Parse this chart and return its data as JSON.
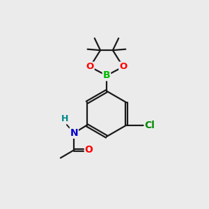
{
  "background_color": "#ebebeb",
  "bond_color": "#1a1a1a",
  "atom_colors": {
    "O": "#ff0000",
    "N": "#0000cc",
    "B": "#00bb00",
    "Cl": "#008800",
    "H": "#008888",
    "C": "#1a1a1a"
  },
  "line_width": 1.6,
  "figsize": [
    3.0,
    3.0
  ],
  "dpi": 100
}
